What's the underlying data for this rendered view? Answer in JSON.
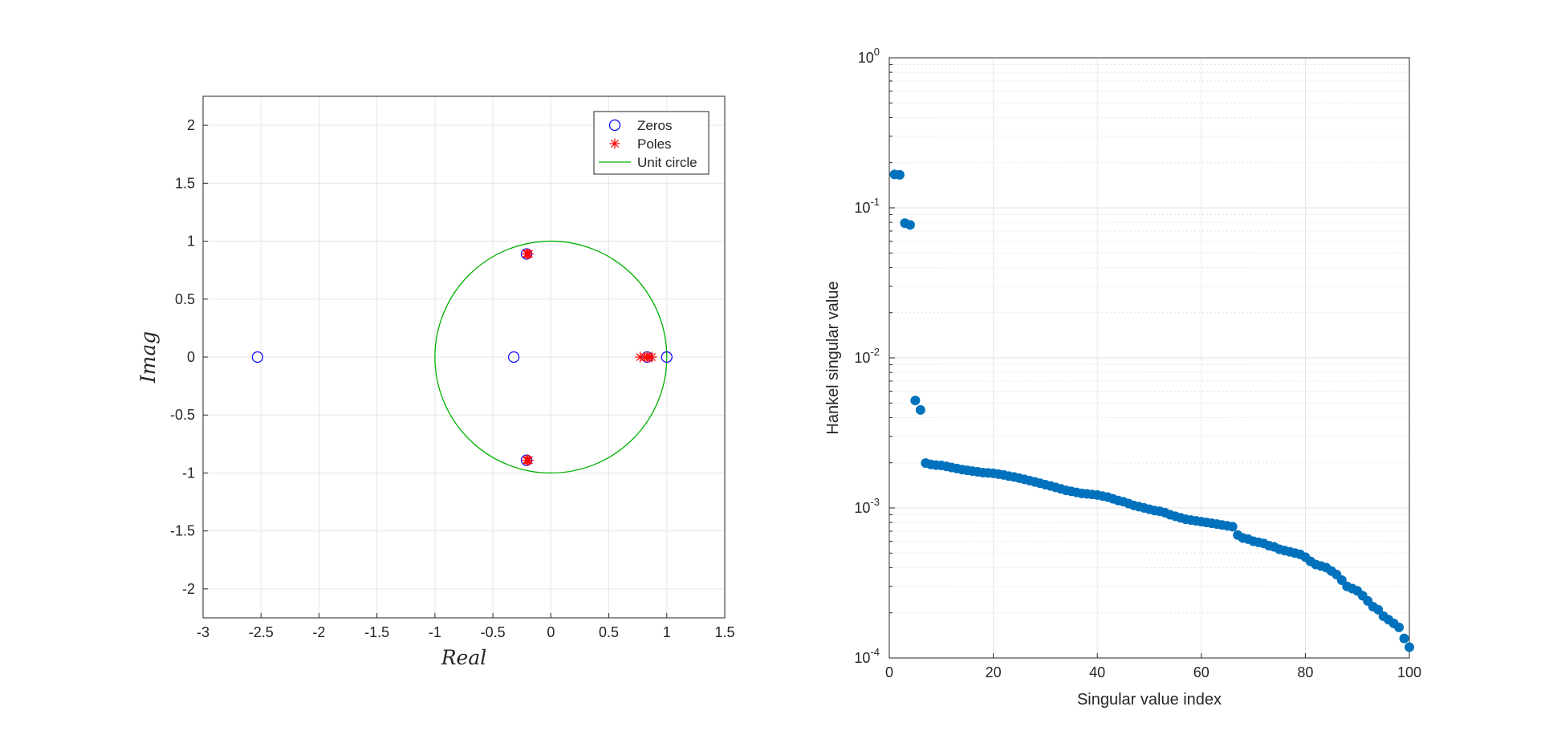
{
  "chart_data": [
    {
      "type": "scatter",
      "xlabel": "Real",
      "ylabel": "Imag",
      "xlim": [
        -3,
        1.5
      ],
      "ylim": [
        -2.25,
        2.25
      ],
      "xticks": [
        -3,
        -2.5,
        -2,
        -1.5,
        -1,
        -0.5,
        0,
        0.5,
        1,
        1.5
      ],
      "xtick_labels": [
        "-3",
        "-2.5",
        "-2",
        "-1.5",
        "-1",
        "-0.5",
        "0",
        "0.5",
        "1",
        "1.5"
      ],
      "yticks": [
        -2,
        -1.5,
        -1,
        -0.5,
        0,
        0.5,
        1,
        1.5,
        2
      ],
      "ytick_labels": [
        "-2",
        "-1.5",
        "-1",
        "-0.5",
        "0",
        "0.5",
        "1",
        "1.5",
        "2"
      ],
      "grid": true,
      "legend_position": "top-right",
      "series": [
        {
          "name": "Zeros",
          "marker": "circle-open",
          "color": "#0000ff",
          "x": [
            -2.53,
            -0.32,
            -0.21,
            -0.21,
            0.83,
            1.0
          ],
          "y": [
            0,
            0,
            0.89,
            -0.89,
            0,
            0
          ]
        },
        {
          "name": "Poles",
          "marker": "asterisk",
          "color": "#ff0000",
          "x": [
            -0.2,
            -0.21,
            -0.19,
            -0.2,
            -0.21,
            -0.19,
            0.77,
            0.81,
            0.83,
            0.85,
            0.87
          ],
          "y": [
            0.89,
            0.89,
            0.89,
            -0.89,
            -0.89,
            -0.89,
            0,
            0,
            0,
            0,
            0
          ]
        },
        {
          "name": "Unit circle",
          "marker": "line",
          "color": "#00b000",
          "radius": 1
        }
      ]
    },
    {
      "type": "scatter",
      "xlabel": "Singular value index",
      "ylabel": "Hankel singular value",
      "xlim": [
        0,
        100
      ],
      "ylim": [
        0.0001,
        1
      ],
      "yscale": "log",
      "xticks": [
        0,
        20,
        40,
        60,
        80,
        100
      ],
      "xtick_labels": [
        "0",
        "20",
        "40",
        "60",
        "80",
        "100"
      ],
      "ytick_exponents": [
        -4,
        -3,
        -2,
        -1,
        0
      ],
      "ytick_base": "10",
      "grid": true,
      "marker_color": "#0072bd",
      "x": [
        1,
        2,
        3,
        4,
        5,
        6,
        7,
        8,
        9,
        10,
        11,
        12,
        13,
        14,
        15,
        16,
        17,
        18,
        19,
        20,
        21,
        22,
        23,
        24,
        25,
        26,
        27,
        28,
        29,
        30,
        31,
        32,
        33,
        34,
        35,
        36,
        37,
        38,
        39,
        40,
        41,
        42,
        43,
        44,
        45,
        46,
        47,
        48,
        49,
        50,
        51,
        52,
        53,
        54,
        55,
        56,
        57,
        58,
        59,
        60,
        61,
        62,
        63,
        64,
        65,
        66,
        67,
        68,
        69,
        70,
        71,
        72,
        73,
        74,
        75,
        76,
        77,
        78,
        79,
        80,
        81,
        82,
        83,
        84,
        85,
        86,
        87,
        88,
        89,
        90,
        91,
        92,
        93,
        94,
        95,
        96,
        97,
        98,
        99,
        100
      ],
      "values": [
        0.167,
        0.166,
        0.079,
        0.077,
        0.0052,
        0.0045,
        0.00199,
        0.00195,
        0.00193,
        0.00192,
        0.00189,
        0.00186,
        0.00183,
        0.0018,
        0.00178,
        0.00176,
        0.00174,
        0.00172,
        0.00171,
        0.0017,
        0.00168,
        0.00166,
        0.00163,
        0.00161,
        0.00158,
        0.00155,
        0.00152,
        0.00149,
        0.00146,
        0.00143,
        0.0014,
        0.00137,
        0.00134,
        0.00131,
        0.00129,
        0.00127,
        0.00125,
        0.00124,
        0.00123,
        0.00122,
        0.0012,
        0.00118,
        0.00115,
        0.00112,
        0.0011,
        0.00107,
        0.00104,
        0.00102,
        0.001,
        0.00098,
        0.00096,
        0.00095,
        0.00093,
        0.0009,
        0.00088,
        0.00086,
        0.00084,
        0.00083,
        0.00082,
        0.00081,
        0.0008,
        0.00079,
        0.00078,
        0.00077,
        0.00076,
        0.00075,
        0.00066,
        0.00063,
        0.00062,
        0.0006,
        0.00059,
        0.00058,
        0.00056,
        0.00055,
        0.00053,
        0.00052,
        0.00051,
        0.0005,
        0.00049,
        0.00047,
        0.00044,
        0.00042,
        0.00041,
        0.0004,
        0.00038,
        0.00036,
        0.00033,
        0.0003,
        0.00029,
        0.00028,
        0.00026,
        0.00024,
        0.00022,
        0.00021,
        0.00019,
        0.00018,
        0.00017,
        0.00016,
        0.000135,
        0.000118
      ]
    }
  ]
}
